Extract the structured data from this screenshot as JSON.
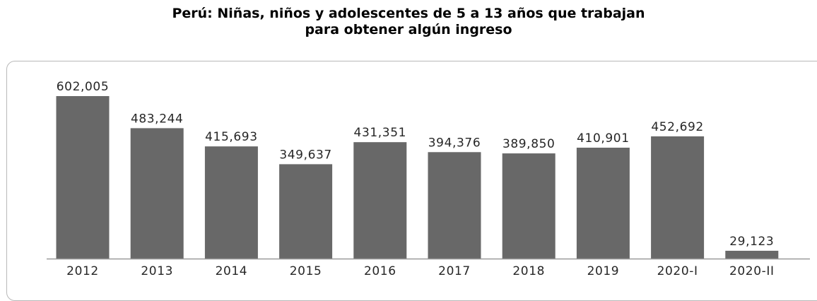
{
  "chart_data": {
    "type": "bar",
    "title_lines": [
      "Perú: Niñas, niños y adolescentes de 5 a 13 años que trabajan",
      "para obtener algún ingreso"
    ],
    "xlabel": "",
    "ylabel": "",
    "categories": [
      "2012",
      "2013",
      "2014",
      "2015",
      "2016",
      "2017",
      "2018",
      "2019",
      "2020-I",
      "2020-II"
    ],
    "values": [
      602005,
      483244,
      415693,
      349637,
      431351,
      394376,
      389850,
      410901,
      452692,
      29123
    ],
    "value_labels": [
      "602,005",
      "483,244",
      "415,693",
      "349,637",
      "431,351",
      "394,376",
      "389,850",
      "410,901",
      "452,692",
      "29,123"
    ],
    "ylim": [
      0,
      602005
    ],
    "grid": false,
    "legend": "none",
    "bar_color": "#686868",
    "axis_color": "#9a9a9a",
    "label_color": "#262626"
  }
}
